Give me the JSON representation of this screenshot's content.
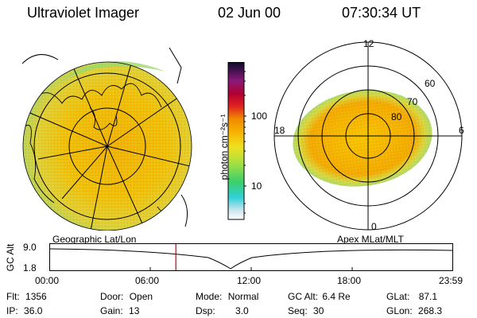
{
  "header": {
    "title": "Ultraviolet Imager",
    "date": "02 Jun 00",
    "time": "07:30:34 UT"
  },
  "colorbar": {
    "unit": "photon cm⁻²s⁻¹",
    "ticks": [
      "100",
      "10"
    ]
  },
  "polar_plot": {
    "mlt_labels": {
      "top": "12",
      "left": "18",
      "right": "6",
      "bottom": "0"
    },
    "lat_labels": [
      "60",
      "70",
      "80"
    ]
  },
  "timeline": {
    "left_label": "Geographic Lat/Lon",
    "right_label": "Apex MLat/MLT",
    "y_axis_label": "GC Alt",
    "y_ticks": [
      "9.0",
      "1.8"
    ],
    "x_ticks": [
      "00:00",
      "06:00",
      "12:00",
      "18:00",
      "23:59"
    ],
    "current_time_fraction": 0.3127
  },
  "info": {
    "flt_label": "Flt:",
    "flt_value": "1356",
    "ip_label": "IP:",
    "ip_value": "36.0",
    "door_label": "Door:",
    "door_value": "Open",
    "gain_label": "Gain:",
    "gain_value": "13",
    "mode_label": "Mode:",
    "mode_value": "Normal",
    "dsp_label": "Dsp:",
    "dsp_value": "3.0",
    "gcalt_label": "GC Alt:",
    "gcalt_value": "6.4 Re",
    "seq_label": "Seq:",
    "seq_value": "30",
    "glat_label": "GLat:",
    "glat_value": "87.1",
    "glon_label": "GLon:",
    "glon_value": "268.3"
  },
  "colors": {
    "accent_marker": "#cc0000"
  }
}
